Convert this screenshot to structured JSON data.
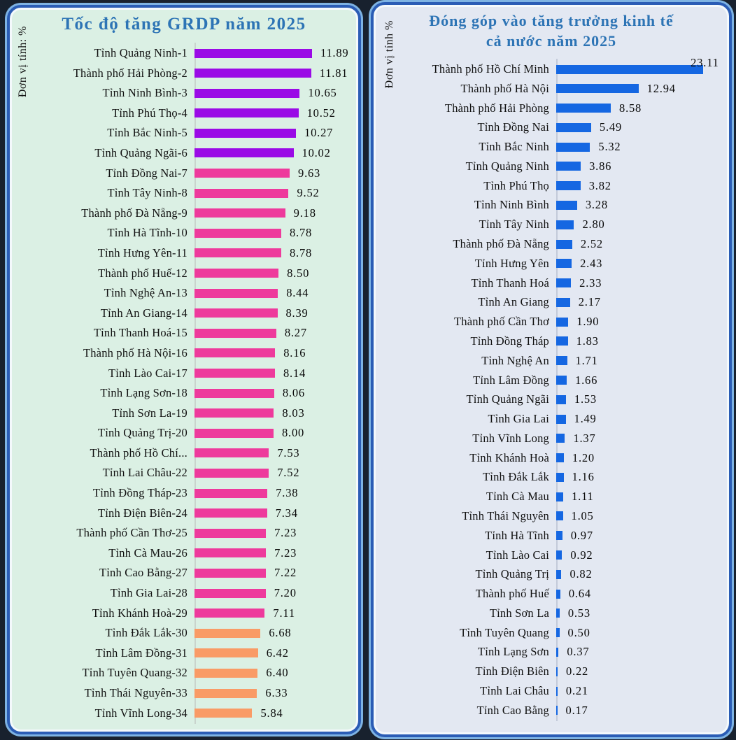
{
  "page": {
    "background_color": "#18212e",
    "panel_border_color": "#2a5cb5",
    "panel_border_highlight": "#7eb3e3"
  },
  "chart_data": [
    {
      "type": "bar",
      "orientation": "horizontal",
      "title": "Tốc độ tăng GRDP năm 2025",
      "unit_label": "Đơn vị tính: %",
      "title_color": "#2d74b5",
      "panel_bg": "#dbf0e4",
      "grid": false,
      "legend": false,
      "xlim": [
        0,
        16
      ],
      "value_label_position": "right-of-bar",
      "categories": [
        "Tỉnh Quảng Ninh-1",
        "Thành phố Hải Phòng-2",
        "Tỉnh Ninh Bình-3",
        "Tỉnh Phú Thọ-4",
        "Tỉnh Bắc Ninh-5",
        "Tỉnh Quảng Ngãi-6",
        "Tỉnh Đồng Nai-7",
        "Tỉnh Tây Ninh-8",
        "Thành phố Đà Nẵng-9",
        "Tỉnh Hà Tĩnh-10",
        "Tỉnh Hưng Yên-11",
        "Thành phố Huế-12",
        "Tỉnh Nghệ An-13",
        "Tỉnh An Giang-14",
        "Tỉnh Thanh Hoá-15",
        "Thành phố Hà Nội-16",
        "Tỉnh Lào Cai-17",
        "Tỉnh Lạng Sơn-18",
        "Tỉnh Sơn La-19",
        "Tỉnh Quảng Trị-20",
        "Thành phố Hồ Chí...",
        "Tỉnh Lai Châu-22",
        "Tỉnh Đồng Tháp-23",
        "Tỉnh Điện Biên-24",
        "Thành phố Cần Thơ-25",
        "Tỉnh Cà Mau-26",
        "Tỉnh Cao Bằng-27",
        "Tỉnh Gia Lai-28",
        "Tỉnh Khánh Hoà-29",
        "Tỉnh Đắk Lắk-30",
        "Tỉnh Lâm Đồng-31",
        "Tỉnh Tuyên Quang-32",
        "Tỉnh Thái Nguyên-33",
        "Tỉnh Vĩnh Long-34"
      ],
      "values": [
        "11.89",
        "11.81",
        "10.65",
        "10.52",
        "10.27",
        "10.02",
        "9.63",
        "9.52",
        "9.18",
        "8.78",
        "8.78",
        "8.50",
        "8.44",
        "8.39",
        "8.27",
        "8.16",
        "8.14",
        "8.06",
        "8.03",
        "8.00",
        "7.53",
        "7.52",
        "7.38",
        "7.34",
        "7.23",
        "7.23",
        "7.22",
        "7.20",
        "7.11",
        "6.68",
        "6.42",
        "6.40",
        "6.33",
        "5.84"
      ],
      "color_segments": [
        {
          "from": 0,
          "to": 5,
          "color": "#9a0ae6"
        },
        {
          "from": 6,
          "to": 28,
          "color": "#ee3a9c"
        },
        {
          "from": 29,
          "to": 33,
          "color": "#f99b66"
        }
      ]
    },
    {
      "type": "bar",
      "orientation": "horizontal",
      "title": "Đóng góp vào tăng trưởng kinh tế cả nước năm 2025",
      "title_lines": [
        "Đóng góp vào tăng trưởng kinh tế",
        "cả nước năm 2025"
      ],
      "unit_label": "Đơn vị tính %",
      "title_color": "#2d74b5",
      "panel_bg": "#e3e8f2",
      "grid": false,
      "legend": false,
      "xlim": [
        0,
        26.5
      ],
      "value_label_position": "right-of-bar",
      "first_value_above": true,
      "bar_color": "#1567e2",
      "categories": [
        "Thành phố Hồ Chí Minh",
        "Thành phố Hà Nội",
        "Thành phố Hải Phòng",
        "Tỉnh Đồng Nai",
        "Tỉnh Bắc Ninh",
        "Tỉnh Quảng Ninh",
        "Tỉnh Phú Thọ",
        "Tỉnh Ninh Bình",
        "Tỉnh Tây Ninh",
        "Thành phố Đà Nẵng",
        "Tỉnh Hưng Yên",
        "Tỉnh Thanh Hoá",
        "Tỉnh An Giang",
        "Thành phố Cần Thơ",
        "Tỉnh Đồng Tháp",
        "Tỉnh Nghệ An",
        "Tỉnh Lâm Đồng",
        "Tỉnh Quảng Ngãi",
        "Tỉnh Gia Lai",
        "Tỉnh Vĩnh Long",
        "Tỉnh Khánh Hoà",
        "Tỉnh Đắk Lắk",
        "Tỉnh Cà Mau",
        "Tỉnh Thái Nguyên",
        "Tỉnh Hà Tĩnh",
        "Tỉnh Lào Cai",
        "Tỉnh Quảng Trị",
        "Thành phố Huế",
        "Tỉnh Sơn La",
        "Tỉnh Tuyên Quang",
        "Tỉnh Lạng Sơn",
        "Tỉnh Điện Biên",
        "Tỉnh Lai Châu",
        "Tỉnh Cao Bằng"
      ],
      "values": [
        "23.11",
        "12.94",
        "8.58",
        "5.49",
        "5.32",
        "3.86",
        "3.82",
        "3.28",
        "2.80",
        "2.52",
        "2.43",
        "2.33",
        "2.17",
        "1.90",
        "1.83",
        "1.71",
        "1.66",
        "1.53",
        "1.49",
        "1.37",
        "1.20",
        "1.16",
        "1.11",
        "1.05",
        "0.97",
        "0.92",
        "0.82",
        "0.64",
        "0.53",
        "0.50",
        "0.37",
        "0.22",
        "0.21",
        "0.17"
      ]
    }
  ]
}
